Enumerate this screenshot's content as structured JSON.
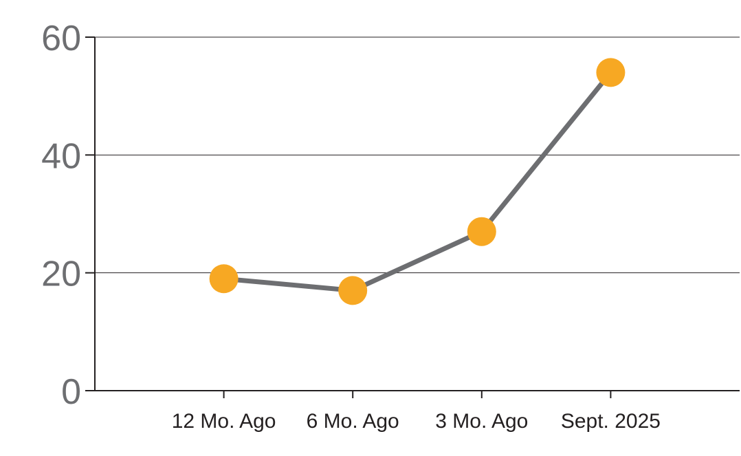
{
  "chart_data": {
    "type": "line",
    "title": "",
    "xlabel": "",
    "ylabel": "",
    "categories": [
      "12 Mo. Ago",
      "6 Mo. Ago",
      "3 Mo. Ago",
      "Sept. 2025"
    ],
    "values": [
      19,
      17,
      27,
      54
    ],
    "ylim": [
      0,
      60
    ],
    "yticks": [
      0,
      20,
      40,
      60
    ],
    "grid": true,
    "legend": false,
    "colors": {
      "line": "#6D6E71",
      "marker": "#F7A823",
      "axis": "#231F20",
      "gridline": "#231F20",
      "y_tick_label": "#6D6E71",
      "x_tick_label": "#231F20",
      "background": "#FFFFFF"
    }
  }
}
